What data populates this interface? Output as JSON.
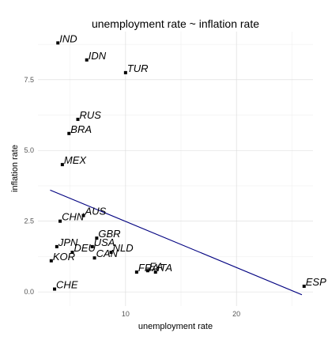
{
  "chart_data": {
    "type": "scatter",
    "title": "unemployment rate ~ inflation rate",
    "xlabel": "unemployment rate",
    "ylabel": "inflation rate",
    "xlim": [
      2.1,
      26.9
    ],
    "ylim": [
      -0.5,
      9.2
    ],
    "x_ticks": [
      10,
      20
    ],
    "y_ticks": [
      0,
      2.5,
      5,
      7.5
    ],
    "x_tick_labels": [
      "10",
      "20"
    ],
    "y_tick_labels": [
      "0.0",
      "2.5",
      "5.0",
      "7.5"
    ],
    "grid": true,
    "points": [
      {
        "label": "IND",
        "x": 3.9,
        "y": 8.8
      },
      {
        "label": "IDN",
        "x": 6.5,
        "y": 8.2
      },
      {
        "label": "TUR",
        "x": 10.0,
        "y": 7.75
      },
      {
        "label": "RUS",
        "x": 5.7,
        "y": 6.1
      },
      {
        "label": "BRA",
        "x": 4.9,
        "y": 5.6
      },
      {
        "label": "MEX",
        "x": 4.3,
        "y": 4.5
      },
      {
        "label": "AUS",
        "x": 6.2,
        "y": 2.7
      },
      {
        "label": "CHN",
        "x": 4.1,
        "y": 2.5
      },
      {
        "label": "GBR",
        "x": 7.4,
        "y": 1.9
      },
      {
        "label": "USA",
        "x": 7.0,
        "y": 1.6
      },
      {
        "label": "JPN",
        "x": 3.8,
        "y": 1.6
      },
      {
        "label": "DEU",
        "x": 5.2,
        "y": 1.4
      },
      {
        "label": "NLD",
        "x": 8.7,
        "y": 1.4
      },
      {
        "label": "CAN",
        "x": 7.2,
        "y": 1.2
      },
      {
        "label": "KOR",
        "x": 3.3,
        "y": 1.1
      },
      {
        "label": "FRA",
        "x": 11.0,
        "y": 0.7
      },
      {
        "label": "EA",
        "x": 12.0,
        "y": 0.75
      },
      {
        "label": "ITA",
        "x": 12.7,
        "y": 0.7
      },
      {
        "label": "ESP",
        "x": 26.1,
        "y": 0.2
      },
      {
        "label": "CHE",
        "x": 3.6,
        "y": 0.1
      }
    ],
    "fit_line": {
      "x": [
        3.2,
        25.9
      ],
      "y": [
        3.6,
        -0.1
      ],
      "color": "#000080"
    }
  }
}
